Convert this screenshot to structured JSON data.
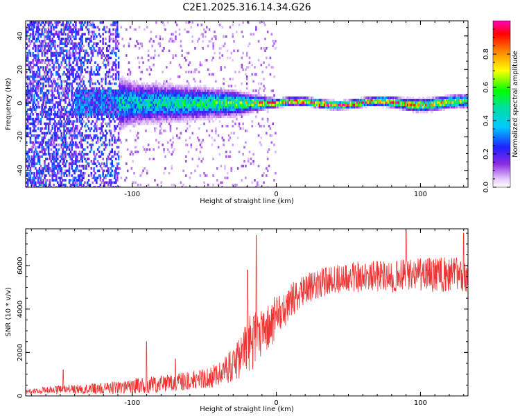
{
  "figure": {
    "title": "C2E1.2025.316.14.34.G26"
  },
  "chart_data": [
    {
      "type": "heatmap",
      "title": "C2E1.2025.316.14.34.G26",
      "xlabel": "Height of straight line (km)",
      "ylabel": "Frequency (Hz)",
      "xlim": [
        -174,
        133
      ],
      "ylim": [
        -50,
        49
      ],
      "xticks": [
        -100,
        0,
        100
      ],
      "yticks": [
        -40,
        -20,
        0,
        20,
        40
      ],
      "tick_labels_x": [
        "-100",
        "0",
        "100"
      ],
      "tick_labels_y": [
        "-40",
        "-20",
        "0",
        "20",
        "40"
      ],
      "colorbar": {
        "label": "Normalized spectral amplitude",
        "range": [
          0,
          1
        ],
        "ticks": [
          0.0,
          0.2,
          0.4,
          0.6,
          0.8
        ],
        "tick_labels": [
          "0.0",
          "0.2",
          "0.4",
          "0.6",
          "0.8"
        ],
        "colormap": "rainbow (white-violet-blue-cyan-green-yellow-red-magenta)"
      },
      "description_points": [
        {
          "x": -150,
          "width_hz": 49,
          "peak": 0.35
        },
        {
          "x": -120,
          "width_hz": 15,
          "peak": 0.45
        },
        {
          "x": -100,
          "width_hz": 10,
          "peak": 0.45
        },
        {
          "x": -60,
          "width_hz": 8,
          "peak": 0.5
        },
        {
          "x": -30,
          "width_hz": 6,
          "peak": 0.6
        },
        {
          "x": -10,
          "width_hz": 3,
          "peak": 0.8
        },
        {
          "x": 0,
          "width_hz": 2,
          "peak": 0.95
        },
        {
          "x": 30,
          "width_hz": 2,
          "peak": 0.95
        },
        {
          "x": 60,
          "width_hz": 2,
          "peak": 0.9
        },
        {
          "x": 100,
          "width_hz": 3,
          "peak": 0.8
        },
        {
          "x": 130,
          "width_hz": 3,
          "peak": 0.7
        }
      ]
    },
    {
      "type": "line",
      "xlabel": "Height of straight line (km)",
      "ylabel": "SNR (10 * v/v)",
      "xlim": [
        -174,
        133
      ],
      "ylim": [
        0,
        7700
      ],
      "xticks": [
        -100,
        0,
        100
      ],
      "yticks": [
        0,
        2000,
        4000,
        6000
      ],
      "tick_labels_x": [
        "-100",
        "0",
        "100"
      ],
      "tick_labels_y": [
        "0",
        "2000",
        "4000",
        "6000"
      ],
      "color": "#ee3333",
      "envelope": {
        "x": [
          -174,
          -150,
          -120,
          -100,
          -80,
          -60,
          -50,
          -40,
          -30,
          -25,
          -20,
          -15,
          -10,
          -5,
          0,
          5,
          10,
          20,
          30,
          40,
          50,
          60,
          80,
          100,
          120,
          133
        ],
        "mean": [
          200,
          300,
          350,
          450,
          550,
          700,
          800,
          1000,
          1400,
          1800,
          2300,
          2700,
          3000,
          3300,
          3600,
          4000,
          4400,
          4900,
          5200,
          5400,
          5500,
          5500,
          5500,
          5550,
          5600,
          5600
        ],
        "amp": [
          120,
          200,
          250,
          350,
          400,
          450,
          450,
          600,
          800,
          1000,
          1300,
          1400,
          1300,
          1200,
          1000,
          900,
          800,
          700,
          700,
          700,
          700,
          750,
          750,
          800,
          800,
          800
        ]
      },
      "peaks": [
        {
          "x": -148,
          "y": 1200
        },
        {
          "x": -90,
          "y": 2500
        },
        {
          "x": -70,
          "y": 1700
        },
        {
          "x": -20,
          "y": 5800
        },
        {
          "x": -14,
          "y": 7400
        },
        {
          "x": 90,
          "y": 7600
        },
        {
          "x": 130,
          "y": 7500
        }
      ]
    }
  ]
}
